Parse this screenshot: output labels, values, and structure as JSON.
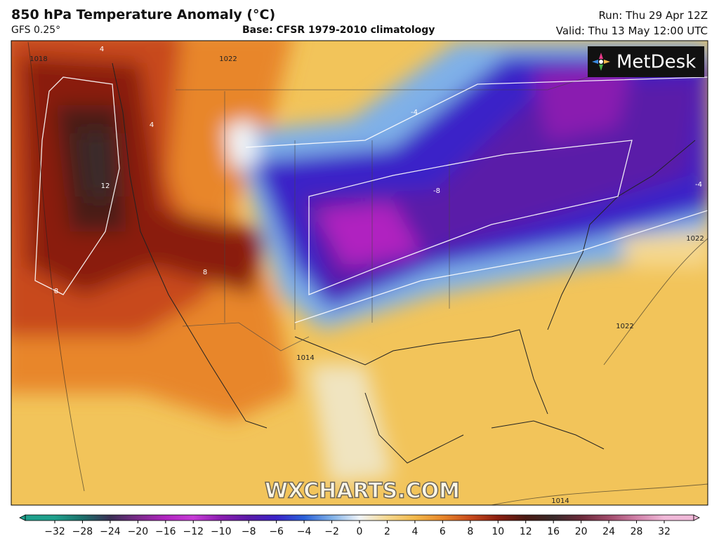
{
  "header": {
    "title": "850 hPa Temperature Anomaly (°C)",
    "model": "GFS 0.25°",
    "base": "Base: CFSR 1979-2010 climatology",
    "run": "Run: Thu 29 Apr 12Z",
    "valid": "Valid: Thu 13 May 12:00 UTC"
  },
  "logo": "MetDesk",
  "watermark": "WXCHARTS.COM",
  "map": {
    "contour_labels": [
      "1018",
      "1022",
      "4",
      "12",
      "8",
      "8",
      "-8",
      "-4",
      "1022",
      "1022",
      "1014",
      "1014",
      "-4",
      "4"
    ]
  },
  "colorbar": {
    "ticks": [
      "−32",
      "−28",
      "−24",
      "−20",
      "−16",
      "−12",
      "−10",
      "−8",
      "−6",
      "−4",
      "−2",
      "0",
      "2",
      "4",
      "6",
      "8",
      "10",
      "12",
      "16",
      "20",
      "24",
      "28",
      "32"
    ],
    "colors": [
      "#1fa08c",
      "#1b6f6a",
      "#3a2f55",
      "#7a2a8a",
      "#b024c0",
      "#c63cd6",
      "#8a1cb0",
      "#5a1aa8",
      "#3a22c8",
      "#2a60d8",
      "#7fb0e8",
      "#f0f4f8",
      "#f5d890",
      "#f2b84a",
      "#e8862a",
      "#c84a1c",
      "#8a1e10",
      "#4a1a14",
      "#3a2a2a",
      "#6a2a3a",
      "#a04a6a",
      "#d080a8",
      "#f0b8d8"
    ]
  }
}
